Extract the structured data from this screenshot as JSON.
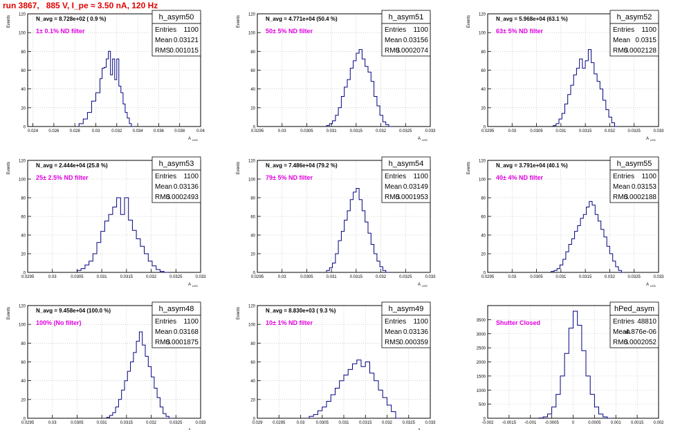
{
  "page": {
    "title": "run 3867,   885 V, I_pe ≈ 3.50 nA, 120 Hz"
  },
  "colors": {
    "hist": "#000080",
    "annotation": "#e000e0",
    "title": "#e00000",
    "grid": "#b0b0b0"
  },
  "chart_data": [
    {
      "type": "histogram",
      "name": "h_asym50",
      "entries": "1100",
      "mean": "0.03121",
      "rms": "0.001015",
      "navg": "N_avg = 8.728e+02 ( 0.9 %)",
      "filter": "1± 0.1% ND filter",
      "xlabel": "A",
      "xlabel_sub": "LED",
      "ylabel": "Events",
      "xlim": [
        0.0235,
        0.04
      ],
      "ylim": [
        0,
        120
      ],
      "xticks": [
        "0.024",
        "0.026",
        "0.028",
        "0.03",
        "0.032",
        "0.034",
        "0.036",
        "0.038",
        "0.04"
      ],
      "xtick_values": [
        0.024,
        0.026,
        0.028,
        0.03,
        0.032,
        0.034,
        0.036,
        0.038,
        0.04
      ],
      "yticks": [
        "0",
        "20",
        "40",
        "60",
        "80",
        "100",
        "120"
      ],
      "ytick_values": [
        0,
        20,
        40,
        60,
        80,
        100,
        120
      ],
      "x": [
        0.0284,
        0.0288,
        0.0292,
        0.0296,
        0.03,
        0.0304,
        0.0306,
        0.0308,
        0.031,
        0.0312,
        0.0314,
        0.0316,
        0.0318,
        0.032,
        0.0322,
        0.0324,
        0.0326,
        0.0328,
        0.033,
        0.0332,
        0.0334
      ],
      "counts": [
        3,
        8,
        15,
        27,
        36,
        51,
        62,
        63,
        72,
        80,
        55,
        72,
        50,
        72,
        43,
        36,
        24,
        15,
        9,
        3,
        0
      ]
    },
    {
      "type": "histogram",
      "name": "h_asym51",
      "entries": "1100",
      "mean": "0.03156",
      "rms": "0.0002074",
      "navg": "N_avg = 4.771e+04 (50.4 %)",
      "filter": "50± 5% ND filter",
      "xlabel": "A",
      "xlabel_sub": "LED",
      "ylabel": "Events",
      "xlim": [
        0.0295,
        0.033
      ],
      "ylim": [
        0,
        120
      ],
      "xticks": [
        "0.0295",
        "0.03",
        "0.0305",
        "0.031",
        "0.0315",
        "0.032",
        "0.0325",
        "0.033"
      ],
      "xtick_values": [
        0.0295,
        0.03,
        0.0305,
        0.031,
        0.0315,
        0.032,
        0.0325,
        0.033
      ],
      "yticks": [
        "0",
        "20",
        "40",
        "60",
        "80",
        "100",
        "120"
      ],
      "ytick_values": [
        0,
        20,
        40,
        60,
        80,
        100,
        120
      ],
      "x": [
        0.0309,
        0.03096,
        0.03102,
        0.03108,
        0.03114,
        0.0312,
        0.03126,
        0.03132,
        0.03138,
        0.03144,
        0.0315,
        0.03156,
        0.03162,
        0.03168,
        0.03174,
        0.0318,
        0.03186,
        0.03192,
        0.03198,
        0.03204,
        0.0321,
        0.03216
      ],
      "counts": [
        1,
        3,
        6,
        12,
        20,
        32,
        42,
        50,
        62,
        70,
        78,
        82,
        72,
        64,
        58,
        48,
        32,
        22,
        12,
        5,
        2,
        0
      ]
    },
    {
      "type": "histogram",
      "name": "h_asym52",
      "entries": "1100",
      "mean": "0.0315",
      "rms": "0.0002128",
      "navg": "N_avg = 5.968e+04 (63.1 %)",
      "filter": "63± 5% ND filter",
      "xlabel": "A",
      "xlabel_sub": "LED",
      "ylabel": "Events",
      "xlim": [
        0.0295,
        0.033
      ],
      "ylim": [
        0,
        120
      ],
      "xticks": [
        "0.0295",
        "0.03",
        "0.0305",
        "0.031",
        "0.0315",
        "0.032",
        "0.0325",
        "0.033"
      ],
      "xtick_values": [
        0.0295,
        0.03,
        0.0305,
        0.031,
        0.0315,
        0.032,
        0.0325,
        0.033
      ],
      "yticks": [
        "0",
        "20",
        "40",
        "60",
        "80",
        "100",
        "120"
      ],
      "ytick_values": [
        0,
        20,
        40,
        60,
        80,
        100,
        120
      ],
      "x": [
        0.03084,
        0.0309,
        0.03096,
        0.03102,
        0.03108,
        0.03114,
        0.0312,
        0.03126,
        0.03132,
        0.03138,
        0.03144,
        0.0315,
        0.03156,
        0.03162,
        0.03168,
        0.03174,
        0.0318,
        0.03186,
        0.03192,
        0.03198,
        0.03204,
        0.0321
      ],
      "counts": [
        1,
        3,
        8,
        14,
        24,
        34,
        44,
        55,
        62,
        72,
        62,
        70,
        82,
        68,
        56,
        48,
        40,
        28,
        18,
        10,
        4,
        0
      ]
    },
    {
      "type": "histogram",
      "name": "h_asym53",
      "entries": "1100",
      "mean": "0.03136",
      "rms": "0.0002493",
      "navg": "N_avg = 2.444e+04 (25.8 %)",
      "filter": "25± 2.5% ND filter",
      "xlabel": "A",
      "xlabel_sub": "LED",
      "ylabel": "Events",
      "xlim": [
        0.0295,
        0.033
      ],
      "ylim": [
        0,
        120
      ],
      "xticks": [
        "0.0295",
        "0.03",
        "0.0305",
        "0.031",
        "0.0315",
        "0.032",
        "0.0325",
        "0.033"
      ],
      "xtick_values": [
        0.0295,
        0.03,
        0.0305,
        0.031,
        0.0315,
        0.032,
        0.0325,
        0.033
      ],
      "yticks": [
        "0",
        "20",
        "40",
        "60",
        "80",
        "100",
        "120"
      ],
      "ytick_values": [
        0,
        20,
        40,
        60,
        80,
        100,
        120
      ],
      "x": [
        0.0305,
        0.03058,
        0.03066,
        0.03074,
        0.03082,
        0.0309,
        0.03098,
        0.03106,
        0.03114,
        0.03122,
        0.0313,
        0.03138,
        0.03146,
        0.03154,
        0.03162,
        0.0317,
        0.03178,
        0.03186,
        0.03194,
        0.03202,
        0.0321,
        0.03218,
        0.03226
      ],
      "counts": [
        2,
        4,
        8,
        12,
        20,
        32,
        44,
        55,
        62,
        70,
        80,
        62,
        80,
        56,
        45,
        36,
        28,
        20,
        12,
        7,
        3,
        1,
        0
      ]
    },
    {
      "type": "histogram",
      "name": "h_asym54",
      "entries": "1100",
      "mean": "0.03149",
      "rms": "0.0001953",
      "navg": "N_avg = 7.486e+04 (79.2 %)",
      "filter": "79± 5% ND filter",
      "xlabel": "A",
      "xlabel_sub": "LED",
      "ylabel": "Events",
      "xlim": [
        0.0295,
        0.033
      ],
      "ylim": [
        0,
        120
      ],
      "xticks": [
        "0.0295",
        "0.03",
        "0.0305",
        "0.031",
        "0.0315",
        "0.032",
        "0.0325",
        "0.033"
      ],
      "xtick_values": [
        0.0295,
        0.03,
        0.0305,
        0.031,
        0.0315,
        0.032,
        0.0325,
        0.033
      ],
      "yticks": [
        "0",
        "20",
        "40",
        "60",
        "80",
        "100",
        "120"
      ],
      "ytick_values": [
        0,
        20,
        40,
        60,
        80,
        100,
        120
      ],
      "x": [
        0.0309,
        0.03096,
        0.03102,
        0.03108,
        0.03114,
        0.0312,
        0.03126,
        0.03132,
        0.03138,
        0.03144,
        0.0315,
        0.03156,
        0.03162,
        0.03168,
        0.03174,
        0.0318,
        0.03186,
        0.03192,
        0.03198,
        0.03204,
        0.0321
      ],
      "counts": [
        2,
        5,
        10,
        20,
        34,
        44,
        56,
        66,
        78,
        86,
        90,
        78,
        66,
        54,
        42,
        30,
        20,
        12,
        6,
        2,
        0
      ]
    },
    {
      "type": "histogram",
      "name": "h_asym55",
      "entries": "1100",
      "mean": "0.03153",
      "rms": "0.0002188",
      "navg": "N_avg = 3.791e+04 (40.1 %)",
      "filter": "40± 4% ND filter",
      "xlabel": "A",
      "xlabel_sub": "LED",
      "ylabel": "Events",
      "xlim": [
        0.0295,
        0.033
      ],
      "ylim": [
        0,
        120
      ],
      "xticks": [
        "0.0295",
        "0.03",
        "0.0305",
        "0.031",
        "0.0315",
        "0.032",
        "0.0325",
        "0.033"
      ],
      "xtick_values": [
        0.0295,
        0.03,
        0.0305,
        0.031,
        0.0315,
        0.032,
        0.0325,
        0.033
      ],
      "yticks": [
        "0",
        "20",
        "40",
        "60",
        "80",
        "100",
        "120"
      ],
      "ytick_values": [
        0,
        20,
        40,
        60,
        80,
        100,
        120
      ],
      "x": [
        0.0308,
        0.03086,
        0.03092,
        0.03098,
        0.03104,
        0.0311,
        0.03116,
        0.03122,
        0.03128,
        0.03134,
        0.0314,
        0.03146,
        0.03152,
        0.03158,
        0.03164,
        0.0317,
        0.03176,
        0.03182,
        0.03188,
        0.03194,
        0.032,
        0.03206,
        0.03212,
        0.03218,
        0.03224
      ],
      "counts": [
        1,
        2,
        4,
        8,
        14,
        22,
        30,
        36,
        44,
        50,
        58,
        62,
        70,
        76,
        72,
        62,
        55,
        46,
        38,
        28,
        20,
        12,
        6,
        2,
        0
      ]
    },
    {
      "type": "histogram",
      "name": "h_asym48",
      "entries": "1100",
      "mean": "0.03168",
      "rms": "0.0001875",
      "navg": "N_avg = 9.458e+04 (100.0 %)",
      "filter": "100% (No filter)",
      "xlabel": "A",
      "xlabel_sub": "LED",
      "ylabel": "Events",
      "xlim": [
        0.0295,
        0.033
      ],
      "ylim": [
        0,
        120
      ],
      "xticks": [
        "0.0295",
        "0.03",
        "0.0305",
        "0.031",
        "0.0315",
        "0.032",
        "0.0325",
        "0.033"
      ],
      "xtick_values": [
        0.0295,
        0.03,
        0.0305,
        0.031,
        0.0315,
        0.032,
        0.0325,
        0.033
      ],
      "yticks": [
        "0",
        "20",
        "40",
        "60",
        "80",
        "100",
        "120"
      ],
      "ytick_values": [
        0,
        20,
        40,
        60,
        80,
        100,
        120
      ],
      "x": [
        0.0311,
        0.03116,
        0.03122,
        0.03128,
        0.03134,
        0.0314,
        0.03146,
        0.03152,
        0.03158,
        0.03164,
        0.0317,
        0.03176,
        0.03182,
        0.03188,
        0.03194,
        0.032,
        0.03206,
        0.03212,
        0.03218,
        0.03224,
        0.0323,
        0.03236
      ],
      "counts": [
        1,
        3,
        6,
        12,
        20,
        30,
        40,
        50,
        60,
        70,
        82,
        92,
        78,
        66,
        55,
        44,
        32,
        22,
        12,
        5,
        2,
        0
      ]
    },
    {
      "type": "histogram",
      "name": "h_asym49",
      "entries": "1100",
      "mean": "0.03136",
      "rms": "0.000359",
      "navg": "N_avg = 8.830e+03 ( 9.3 %)",
      "filter": "10± 1% ND filter",
      "xlabel": "A",
      "xlabel_sub": "LED",
      "ylabel": "Events",
      "xlim": [
        0.029,
        0.033
      ],
      "ylim": [
        0,
        120
      ],
      "xticks": [
        "0.029",
        "0.0295",
        "0.03",
        "0.0305",
        "0.031",
        "0.0315",
        "0.032",
        "0.0325",
        "0.033"
      ],
      "xtick_values": [
        0.029,
        0.0295,
        0.03,
        0.0305,
        0.031,
        0.0315,
        0.032,
        0.0325,
        0.033
      ],
      "yticks": [
        "0",
        "20",
        "40",
        "60",
        "80",
        "100",
        "120"
      ],
      "ytick_values": [
        0,
        20,
        40,
        60,
        80,
        100,
        120
      ],
      "x": [
        0.0302,
        0.0303,
        0.0304,
        0.0305,
        0.0306,
        0.0307,
        0.0308,
        0.0309,
        0.031,
        0.0311,
        0.0312,
        0.0313,
        0.0314,
        0.0315,
        0.0316,
        0.0317,
        0.0318,
        0.0319,
        0.032,
        0.0321,
        0.0322
      ],
      "counts": [
        2,
        4,
        8,
        12,
        18,
        25,
        32,
        40,
        46,
        52,
        58,
        62,
        55,
        60,
        48,
        40,
        30,
        22,
        14,
        7,
        0
      ]
    },
    {
      "type": "histogram",
      "name": "hPed_asym",
      "entries": "48810",
      "mean": "-4.876e-06",
      "rms": "0.0002052",
      "navg": "",
      "filter": "Shutter Closed",
      "xlabel": "",
      "xlabel_sub": "",
      "ylabel": "",
      "xlim": [
        -0.002,
        0.002
      ],
      "ylim": [
        0,
        4000
      ],
      "xticks": [
        "-0.002",
        "-0.0015",
        "-0.001",
        "-0.0005",
        "0",
        "0.0005",
        "0.001",
        "0.0015",
        "0.002"
      ],
      "xtick_values": [
        -0.002,
        -0.0015,
        -0.001,
        -0.0005,
        0,
        0.0005,
        0.001,
        0.0015,
        0.002
      ],
      "yticks": [
        "0",
        "500",
        "1000",
        "1500",
        "2000",
        "2500",
        "3000",
        "3500"
      ],
      "ytick_values": [
        0,
        500,
        1000,
        1500,
        2000,
        2500,
        3000,
        3500
      ],
      "x": [
        -0.0008,
        -0.0007,
        -0.0006,
        -0.0005,
        -0.0004,
        -0.0003,
        -0.0002,
        -0.0001,
        0,
        0.0001,
        0.0002,
        0.0003,
        0.0004,
        0.0005,
        0.0006,
        0.0007,
        0.0008
      ],
      "counts": [
        10,
        50,
        150,
        400,
        850,
        1500,
        2300,
        3200,
        3800,
        3300,
        2400,
        1500,
        850,
        400,
        150,
        50,
        0
      ]
    }
  ]
}
